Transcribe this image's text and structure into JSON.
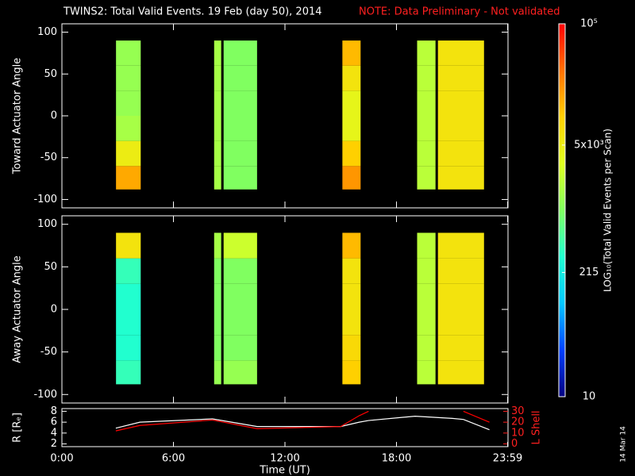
{
  "header": {
    "title": "TWINS2: Total Valid Events. 19 Feb (day  50), 2014",
    "note": "NOTE: Data Preliminary - Not validated"
  },
  "stamp": "14 Mar 14",
  "colorbar": {
    "label": "LOG₁₀(Total Valid Events per Scan)",
    "scale": "log",
    "lim": [
      10,
      100000
    ],
    "ticks": [
      10,
      215,
      {
        "value": 5000,
        "label": "5x10³"
      },
      {
        "value": 100000,
        "label": "10⁵"
      }
    ],
    "colormap": [
      "#000080",
      "#0040ff",
      "#00c8ff",
      "#20ffd0",
      "#80ff60",
      "#e0ff20",
      "#ffd000",
      "#ff7000",
      "#ff0000"
    ]
  },
  "chart_data": [
    {
      "type": "heatmap",
      "ylabel": "Toward Actuator Angle",
      "xlim": [
        0,
        24
      ],
      "ylim": [
        -110,
        110
      ],
      "yticks": [
        -100,
        -50,
        0,
        50,
        100
      ],
      "angle_edges": [
        -88,
        -60,
        -30,
        0,
        30,
        60,
        90
      ],
      "blocks": [
        {
          "start": 2.91,
          "end": 4.24,
          "values": [
            16000,
            5000,
            1600,
            1300,
            1300,
            1300
          ]
        },
        {
          "start": 8.19,
          "end": 8.57,
          "values": [
            1600,
            1600,
            1600,
            1600,
            1600,
            1600
          ]
        },
        {
          "start": 8.7,
          "end": 10.5,
          "values": [
            1000,
            1000,
            1000,
            1000,
            1000,
            1000
          ]
        },
        {
          "start": 15.09,
          "end": 16.07,
          "values": [
            20000,
            10000,
            4000,
            4000,
            6300,
            13000
          ]
        },
        {
          "start": 19.11,
          "end": 20.1,
          "values": [
            2000,
            2000,
            2000,
            2000,
            2000,
            2000
          ]
        },
        {
          "start": 20.23,
          "end": 22.71,
          "values": [
            6300,
            6300,
            6300,
            6300,
            6300,
            6300
          ]
        }
      ]
    },
    {
      "type": "heatmap",
      "ylabel": "Away Actuator Angle",
      "xlim": [
        0,
        24
      ],
      "ylim": [
        -110,
        110
      ],
      "yticks": [
        -100,
        -50,
        0,
        50,
        100
      ],
      "angle_edges": [
        -88,
        -60,
        -30,
        0,
        30,
        60,
        90
      ],
      "blocks": [
        {
          "start": 2.91,
          "end": 4.24,
          "values": [
            400,
            320,
            320,
            320,
            400,
            6300
          ]
        },
        {
          "start": 8.19,
          "end": 8.57,
          "values": [
            1300,
            1000,
            1000,
            1000,
            1000,
            1600
          ]
        },
        {
          "start": 8.7,
          "end": 10.5,
          "values": [
            1300,
            1000,
            1000,
            1000,
            1000,
            2500
          ]
        },
        {
          "start": 15.09,
          "end": 16.07,
          "values": [
            10000,
            8000,
            6300,
            6300,
            6300,
            13000
          ]
        },
        {
          "start": 19.11,
          "end": 20.1,
          "values": [
            2000,
            2000,
            2000,
            2000,
            2000,
            2000
          ]
        },
        {
          "start": 20.23,
          "end": 22.71,
          "values": [
            6300,
            6300,
            6300,
            6300,
            6300,
            6300
          ]
        }
      ]
    },
    {
      "type": "line",
      "xlabel": "Time (UT)",
      "ylabel": "R [Rₑ]",
      "y2label": "L Shell",
      "xlim": [
        0,
        24
      ],
      "xticks": [
        {
          "value": 0,
          "label": "0:00"
        },
        {
          "value": 6,
          "label": "6:00"
        },
        {
          "value": 12,
          "label": "12:00"
        },
        {
          "value": 18,
          "label": "18:00"
        },
        {
          "value": 23.98,
          "label": "23:59"
        }
      ],
      "ylim": [
        1.5,
        8.5
      ],
      "yticks": [
        2,
        4,
        6,
        8
      ],
      "y2lim": [
        -2.5,
        32.5
      ],
      "y2ticks": [
        0,
        10,
        20,
        30
      ],
      "x": [
        2.9,
        4.2,
        8.1,
        10.5,
        15.0,
        16.0,
        16.5,
        19.0,
        21.0,
        21.6,
        23.0
      ],
      "series": [
        {
          "name": "R",
          "color": "#ffffff",
          "values": [
            4.9,
            6.0,
            6.6,
            5.2,
            5.2,
            6.0,
            6.3,
            7.1,
            6.7,
            6.5,
            4.6
          ]
        },
        {
          "name": "L Shell",
          "color": "#ff0000",
          "axis": "y2",
          "values": [
            12,
            17,
            22,
            14,
            16,
            26,
            30,
            null,
            null,
            30,
            20
          ]
        }
      ]
    }
  ]
}
